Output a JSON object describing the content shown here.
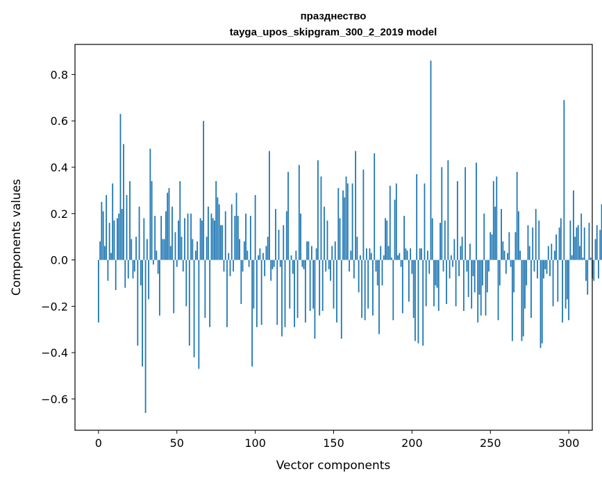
{
  "chart_data": {
    "type": "bar",
    "title_line1": "празднество",
    "title_line2": "tayga_upos_skipgram_300_2_2019 model",
    "xlabel": "Vector components",
    "ylabel": "Components values",
    "xlim": [
      -15,
      315
    ],
    "ylim": [
      -0.735,
      0.93
    ],
    "x_ticks": [
      0,
      50,
      100,
      150,
      200,
      250,
      300
    ],
    "x_tick_labels": [
      "0",
      "50",
      "100",
      "150",
      "200",
      "250",
      "300"
    ],
    "y_ticks": [
      -0.6,
      -0.4,
      -0.2,
      0.0,
      0.2,
      0.4,
      0.6,
      0.8
    ],
    "y_tick_labels": [
      "−0.6",
      "−0.4",
      "−0.2",
      "0.0",
      "0.2",
      "0.4",
      "0.6",
      "0.8"
    ],
    "bar_color": "#1f77b4",
    "grid": false,
    "values": [
      -0.27,
      0.08,
      0.25,
      0.21,
      0.06,
      0.28,
      -0.09,
      0.16,
      0.03,
      0.33,
      0.17,
      -0.13,
      0.18,
      0.2,
      0.63,
      0.22,
      0.5,
      -0.12,
      0.28,
      -0.08,
      0.34,
      0.09,
      -0.08,
      -0.05,
      0.1,
      -0.37,
      0.23,
      -0.11,
      -0.46,
      0.18,
      -0.66,
      0.09,
      -0.17,
      0.48,
      0.34,
      -0.02,
      0.19,
      0.04,
      -0.06,
      -0.24,
      0.19,
      0.09,
      0.09,
      0.21,
      0.29,
      0.31,
      0.06,
      0.23,
      -0.23,
      0.12,
      -0.03,
      0.17,
      0.34,
      0.1,
      -0.05,
      0.18,
      -0.2,
      0.2,
      -0.37,
      0.2,
      0.09,
      -0.42,
      0.04,
      0.08,
      -0.47,
      0.18,
      0.17,
      0.6,
      -0.25,
      0.1,
      0.23,
      -0.29,
      0.2,
      0.18,
      0.17,
      0.34,
      0.27,
      0.24,
      0.15,
      0.15,
      -0.05,
      0.21,
      -0.29,
      0.03,
      -0.07,
      0.24,
      -0.05,
      0.19,
      0.29,
      0.19,
      0.09,
      -0.19,
      -0.05,
      0.08,
      0.2,
      0.04,
      -0.03,
      0.19,
      -0.46,
      -0.21,
      0.28,
      -0.29,
      0.02,
      0.05,
      -0.28,
      0.03,
      -0.07,
      0.06,
      0.1,
      0.47,
      -0.09,
      -0.04,
      -0.03,
      0.22,
      -0.28,
      0.13,
      -0.03,
      -0.33,
      0.15,
      -0.29,
      0.21,
      0.38,
      -0.21,
      0.02,
      -0.06,
      -0.29,
      0.04,
      -0.25,
      0.41,
      0.2,
      -0.03,
      -0.04,
      -0.27,
      0.08,
      0.08,
      -0.22,
      0.06,
      -0.21,
      -0.34,
      0.05,
      0.43,
      -0.24,
      0.36,
      -0.22,
      0.23,
      -0.05,
      0.17,
      -0.04,
      -0.09,
      0.06,
      -0.21,
      0.08,
      -0.27,
      0.31,
      0.18,
      -0.34,
      0.3,
      0.27,
      0.36,
      0.33,
      -0.05,
      0.04,
      0.33,
      -0.08,
      0.47,
      0.1,
      -0.14,
      0.02,
      -0.25,
      0.39,
      -0.26,
      0.05,
      -0.21,
      0.05,
      0.03,
      -0.24,
      0.46,
      -0.05,
      -0.11,
      -0.32,
      0.06,
      -0.11,
      0.02,
      0.18,
      0.17,
      0.06,
      0.32,
      0.01,
      -0.26,
      0.26,
      0.33,
      0.02,
      0.03,
      -0.03,
      -0.23,
      0.19,
      0.05,
      0.04,
      -0.18,
      0.05,
      -0.06,
      -0.25,
      -0.35,
      0.37,
      -0.36,
      0.05,
      0.05,
      -0.37,
      0.33,
      -0.2,
      0.04,
      -0.06,
      0.86,
      0.18,
      -0.2,
      -0.11,
      -0.12,
      -0.22,
      0.16,
      0.4,
      -0.05,
      0.17,
      -0.19,
      0.43,
      -0.08,
      0.02,
      -0.03,
      0.09,
      -0.2,
      0.34,
      -0.07,
      0.06,
      0.1,
      -0.22,
      0.4,
      -0.05,
      -0.16,
      0.07,
      -0.21,
      -0.07,
      -0.14,
      0.42,
      -0.27,
      -0.15,
      -0.24,
      -0.11,
      0.2,
      -0.24,
      -0.14,
      -0.05,
      0.12,
      0.11,
      0.34,
      0.23,
      0.36,
      -0.26,
      -0.11,
      0.22,
      0.08,
      0.04,
      -0.06,
      0.03,
      0.12,
      -0.03,
      -0.35,
      -0.14,
      0.12,
      0.38,
      0.21,
      0.04,
      -0.35,
      -0.33,
      -0.21,
      -0.11,
      0.15,
      0.06,
      -0.25,
      0.14,
      -0.05,
      0.22,
      -0.08,
      0.17,
      -0.38,
      -0.36,
      -0.08,
      -0.04,
      -0.06,
      0.06,
      -0.07,
      0.07,
      -0.2,
      0.04,
      0.11,
      -0.18,
      0.14,
      0.18,
      -0.27,
      0.69,
      -0.21,
      -0.17,
      -0.26,
      0.17,
      0.02,
      0.3,
      0.1,
      0.14,
      0.15,
      0.06,
      0.2,
      0.01,
      0.14,
      -0.09,
      -0.15,
      0.16,
      0.01,
      -0.08,
      -0.09,
      0.09,
      0.15,
      -0.08,
      0.13,
      0.24,
      -0.09
    ]
  }
}
